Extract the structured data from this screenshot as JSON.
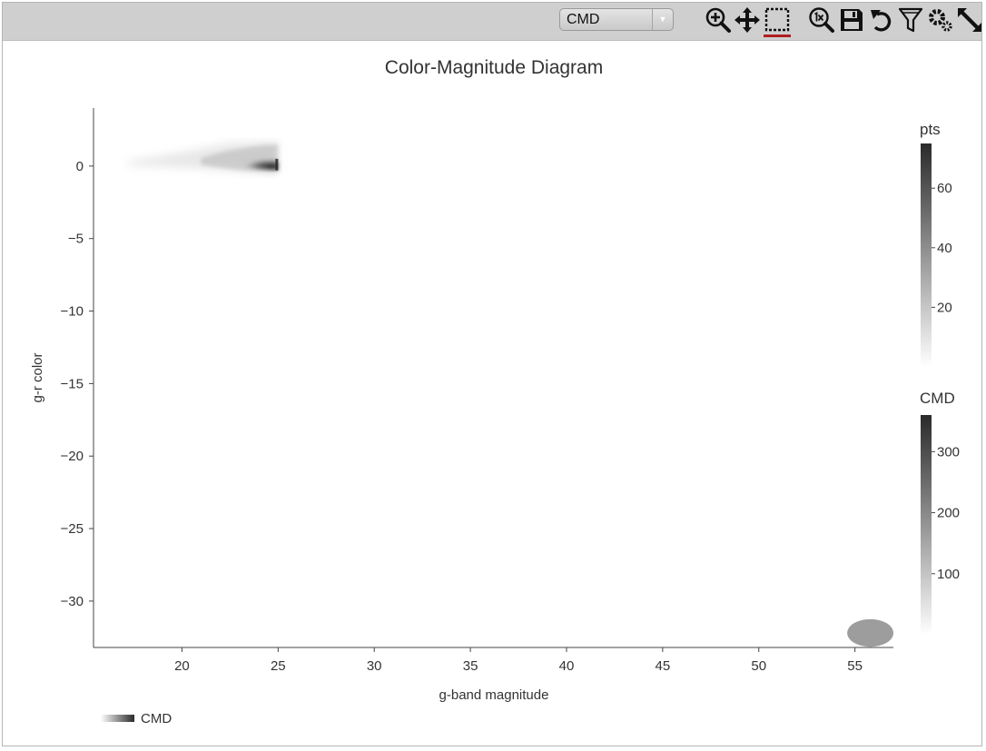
{
  "toolbar": {
    "dataset_select": {
      "selected": "CMD"
    },
    "tools": [
      {
        "name": "zoom-in-icon"
      },
      {
        "name": "pan-icon"
      },
      {
        "name": "box-select-icon",
        "active": true
      },
      {
        "name": "zoom-reset-1x-icon"
      },
      {
        "name": "save-icon"
      },
      {
        "name": "reset-icon"
      },
      {
        "name": "filter-icon"
      },
      {
        "name": "settings-icon"
      },
      {
        "name": "expand-icon"
      }
    ]
  },
  "chart_data": {
    "type": "heatmap",
    "title": "Color-Magnitude Diagram",
    "xlabel": "g-band magnitude",
    "ylabel": "g-r color",
    "xlim": [
      15.4,
      57.0
    ],
    "ylim": [
      -33.2,
      4.0
    ],
    "xticks": [
      20,
      25,
      30,
      35,
      40,
      45,
      50,
      55
    ],
    "yticks": [
      0,
      -5,
      -10,
      -15,
      -20,
      -25,
      -30
    ],
    "regions": [
      {
        "name": "main sequence cloud",
        "x_range": [
          16.0,
          25.0
        ],
        "y_range": [
          -0.6,
          1.6
        ],
        "peak": [
          24.8,
          0.2
        ]
      },
      {
        "name": "outlier blob",
        "x_center": 55.8,
        "y_center": -32.2,
        "x_radius": 1.2,
        "y_radius": 0.95
      }
    ],
    "colorbars": [
      {
        "title": "pts",
        "ticks": [
          20,
          40,
          60
        ],
        "range": [
          0,
          75
        ]
      },
      {
        "title": "CMD",
        "ticks": [
          100,
          200,
          300
        ],
        "range": [
          0,
          360
        ]
      }
    ],
    "legend": {
      "label": "CMD",
      "placement": "bottom-left"
    }
  }
}
